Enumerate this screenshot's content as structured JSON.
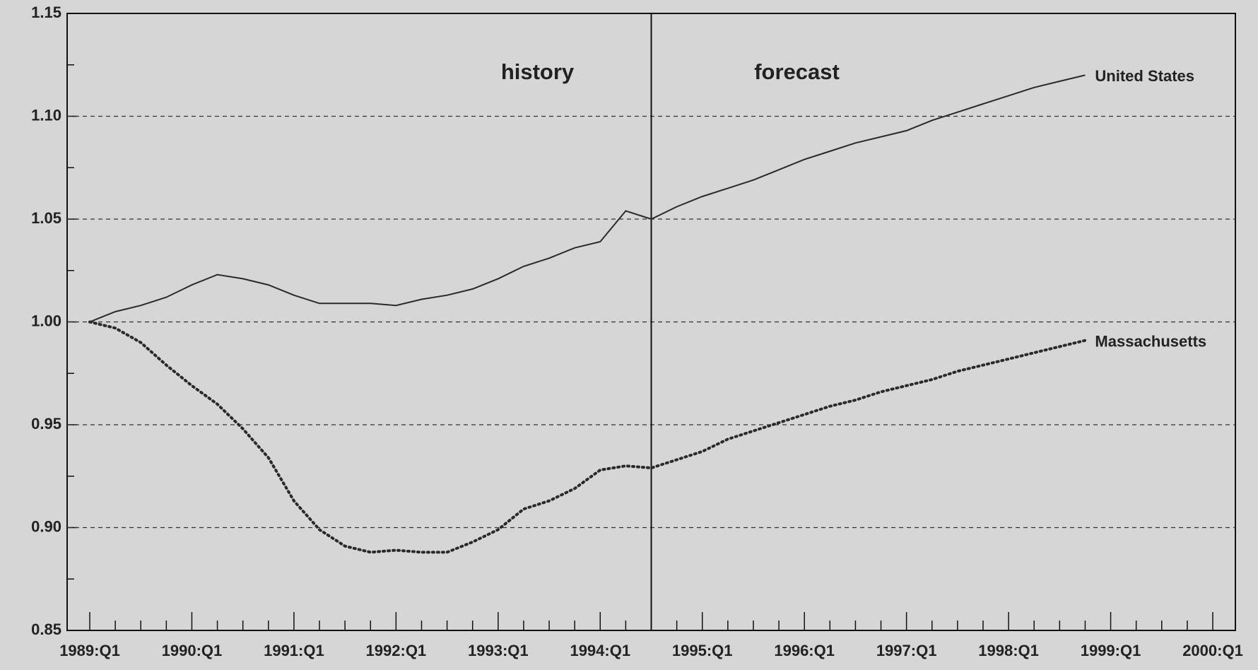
{
  "chart_data": {
    "type": "line",
    "annotations": {
      "history": "history",
      "forecast": "forecast"
    },
    "forecast_start_index": 22,
    "categories": [
      "1989:Q1",
      null,
      null,
      null,
      "1990:Q1",
      null,
      null,
      null,
      "1991:Q1",
      null,
      null,
      null,
      "1992:Q1",
      null,
      null,
      null,
      "1993:Q1",
      null,
      null,
      null,
      "1994:Q1",
      null,
      null,
      null,
      "1995:Q1",
      null,
      null,
      null,
      "1996:Q1",
      null,
      null,
      null,
      "1997:Q1",
      null,
      null,
      null,
      "1998:Q1",
      null,
      null,
      null,
      "1999:Q1",
      null,
      null,
      null,
      "2000:Q1"
    ],
    "series": [
      {
        "name": "United States",
        "color": "#2a2a2a",
        "dash": "solid",
        "values": [
          1.0,
          1.005,
          1.008,
          1.012,
          1.018,
          1.023,
          1.021,
          1.018,
          1.013,
          1.009,
          1.009,
          1.009,
          1.008,
          1.011,
          1.013,
          1.016,
          1.021,
          1.027,
          1.031,
          1.036,
          1.039,
          1.054,
          1.05,
          1.056,
          1.061,
          1.065,
          1.069,
          1.074,
          1.079,
          1.083,
          1.087,
          1.09,
          1.093,
          1.098,
          1.102,
          1.106,
          1.11,
          1.114,
          1.117,
          1.12,
          null,
          null,
          null,
          null,
          null
        ]
      },
      {
        "name": "Massachusetts",
        "color": "#2a2a2a",
        "dash": "dotted",
        "values": [
          1.0,
          0.997,
          0.99,
          0.979,
          0.969,
          0.96,
          0.948,
          0.934,
          0.913,
          0.899,
          0.891,
          0.888,
          0.889,
          0.888,
          0.888,
          0.893,
          0.899,
          0.909,
          0.913,
          0.919,
          0.928,
          0.93,
          0.929,
          0.933,
          0.937,
          0.943,
          0.947,
          0.951,
          0.955,
          0.959,
          0.962,
          0.966,
          0.969,
          0.972,
          0.976,
          0.979,
          0.982,
          0.985,
          0.988,
          0.991,
          null,
          null,
          null,
          null,
          null
        ]
      }
    ],
    "ylim": [
      0.85,
      1.15
    ],
    "yticks": [
      0.85,
      {
        "value": 0.9,
        "label": "0.90"
      },
      0.95,
      {
        "value": 1.0,
        "label": "1.00"
      },
      1.05,
      {
        "value": 1.1,
        "label": "1.10"
      },
      1.15
    ],
    "yticks_minor": [
      0.875,
      0.925,
      0.975,
      1.025,
      1.075,
      1.125
    ],
    "grid": true
  }
}
